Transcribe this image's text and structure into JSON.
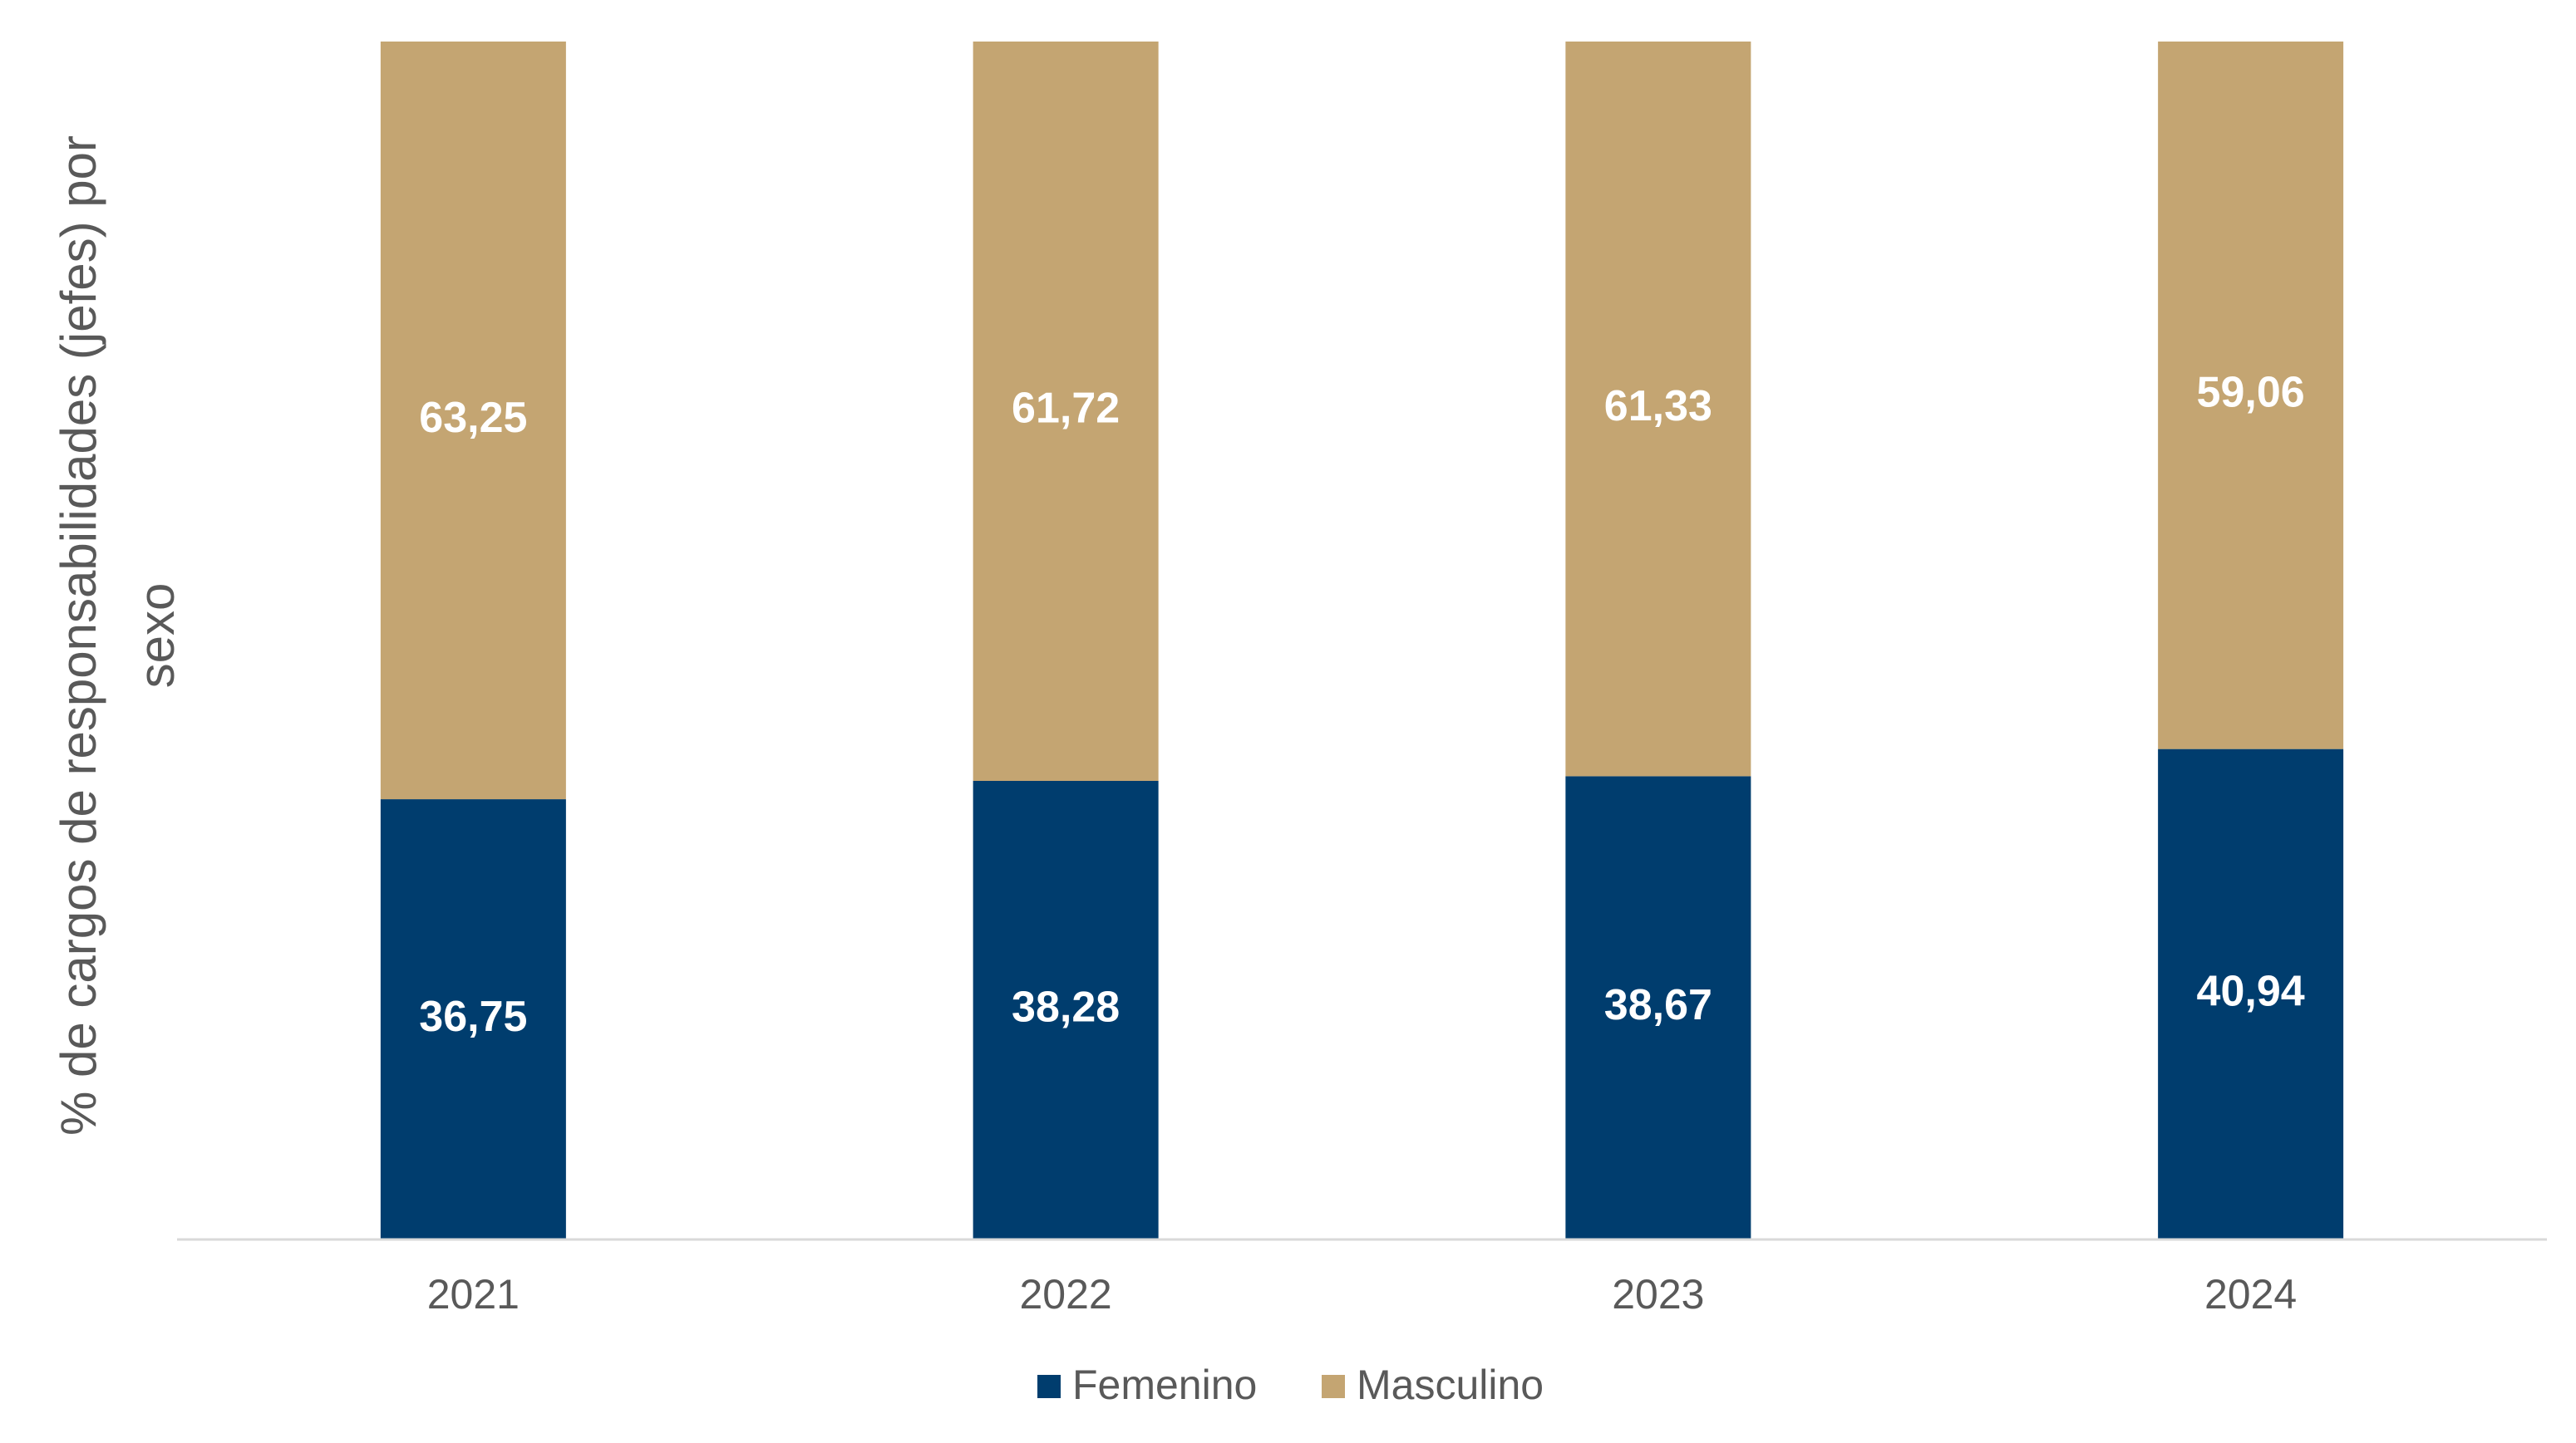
{
  "chart_data": {
    "type": "stacked_bar",
    "y_axis_label": "% de cargos de responsabilidades (jefes) por sexo",
    "categories": [
      "2021",
      "2022",
      "2023",
      "2024"
    ],
    "series": [
      {
        "name": "Femenino",
        "color": "#003d6e",
        "values": [
          36.75,
          38.28,
          38.67,
          40.94
        ],
        "value_labels": [
          "36,75",
          "38,28",
          "38,67",
          "40,94"
        ]
      },
      {
        "name": "Masculino",
        "color": "#c4a572",
        "values": [
          63.25,
          61.72,
          61.33,
          59.06
        ],
        "value_labels": [
          "63,25",
          "61,72",
          "61,33",
          "59,06"
        ]
      }
    ],
    "ylim": [
      0,
      100
    ],
    "legend": "bottom"
  }
}
